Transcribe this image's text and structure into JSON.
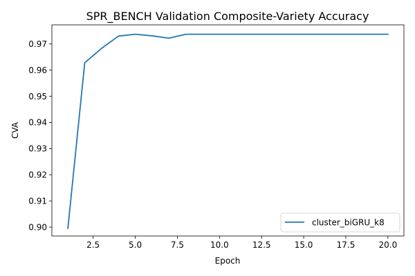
{
  "chart_data": {
    "type": "line",
    "title": "SPR_BENCH Validation Composite-Variety Accuracy",
    "xlabel": "Epoch",
    "ylabel": "CVA",
    "xlim": [
      0.05,
      20.95
    ],
    "ylim": [
      0.8966,
      0.9773
    ],
    "xticks": [
      2.5,
      5.0,
      7.5,
      10.0,
      12.5,
      15.0,
      17.5,
      20.0
    ],
    "xtick_labels": [
      "2.5",
      "5.0",
      "7.5",
      "10.0",
      "12.5",
      "15.0",
      "17.5",
      "20.0"
    ],
    "yticks": [
      0.9,
      0.91,
      0.92,
      0.93,
      0.94,
      0.95,
      0.96,
      0.97
    ],
    "ytick_labels": [
      "0.90",
      "0.91",
      "0.92",
      "0.93",
      "0.94",
      "0.95",
      "0.96",
      "0.97"
    ],
    "grid": false,
    "legend_position": "bottom-right",
    "series": [
      {
        "name": "cluster_biGRU_k8",
        "color": "#1f77b4",
        "x": [
          1,
          2,
          3,
          4,
          5,
          6,
          7,
          8,
          9,
          10,
          11,
          12,
          13,
          14,
          15,
          16,
          17,
          18,
          19,
          20
        ],
        "y": [
          0.8995,
          0.9628,
          0.9683,
          0.973,
          0.9737,
          0.9731,
          0.9722,
          0.9737,
          0.9737,
          0.9737,
          0.9737,
          0.9737,
          0.9737,
          0.9737,
          0.9737,
          0.9737,
          0.9737,
          0.9737,
          0.9737,
          0.9737
        ]
      }
    ]
  }
}
